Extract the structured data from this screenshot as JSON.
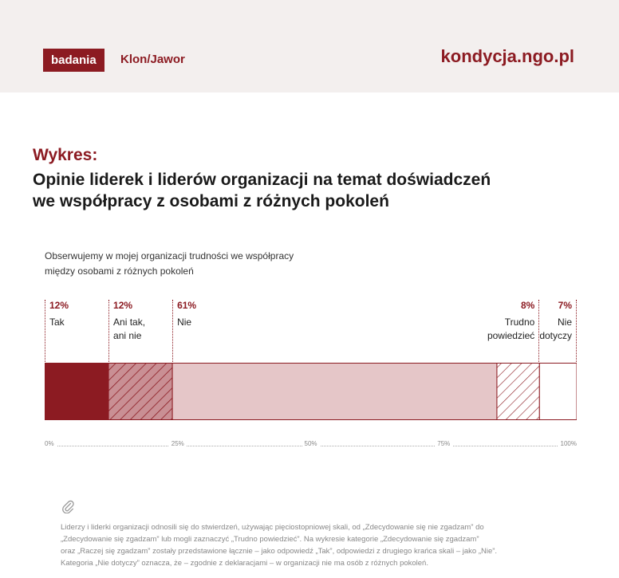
{
  "header": {
    "brand_box": "badania",
    "brand_name": "Klon/Jawor",
    "site": "kondycja.ngo.pl"
  },
  "heading": {
    "label": "Wykres:",
    "title_line1": "Opinie liderek i liderów organizacji na temat doświadczeń",
    "title_line2": "we współpracy z osobami z różnych pokoleń"
  },
  "question_line1": "Obserwujemy w mojej organizacji trudności we współpracy",
  "question_line2": "między osobami z różnych pokoleń",
  "colors": {
    "accent": "#8c1b22",
    "mid": "#c98f94",
    "light": "#e5c6c8",
    "white": "#ffffff"
  },
  "chart_data": {
    "type": "bar",
    "orientation": "horizontal-stacked-100",
    "categories": [
      "Tak",
      "Ani tak, ani nie",
      "Nie",
      "Trudno powiedzieć",
      "Nie dotyczy"
    ],
    "values": [
      12,
      12,
      61,
      8,
      7
    ],
    "value_labels": [
      "12%",
      "12%",
      "61%",
      "8%",
      "7%"
    ],
    "label_lines": [
      [
        "Tak"
      ],
      [
        "Ani tak,",
        "ani nie"
      ],
      [
        "Nie"
      ],
      [
        "Trudno",
        "powiedzieć"
      ],
      [
        "Nie",
        "dotyczy"
      ]
    ],
    "styles": [
      "solid-dark",
      "hatched-mid",
      "solid-light",
      "hatched-white",
      "white"
    ],
    "xlim": [
      0,
      100
    ],
    "ticks": [
      "0%",
      "25%",
      "50%",
      "75%",
      "100%"
    ]
  },
  "footnote": {
    "line1": "Liderzy i liderki organizacji odnosili się do stwierdzeń, używając pięciostopniowej skali, od „Zdecydowanie się nie zgadzam” do",
    "line2": "„Zdecydowanie się zgadzam” lub mogli zaznaczyć „Trudno powiedzieć”. Na wykresie kategorie „Zdecydowanie się zgadzam”",
    "line3": "oraz „Raczej się zgadzam” zostały przedstawione łącznie – jako odpowiedź „Tak”, odpowiedzi z drugiego krańca skali – jako „Nie”.",
    "line4": "Kategoria „Nie dotyczy” oznacza, że – zgodnie z deklaracjami – w organizacji nie ma osób z różnych pokoleń."
  }
}
